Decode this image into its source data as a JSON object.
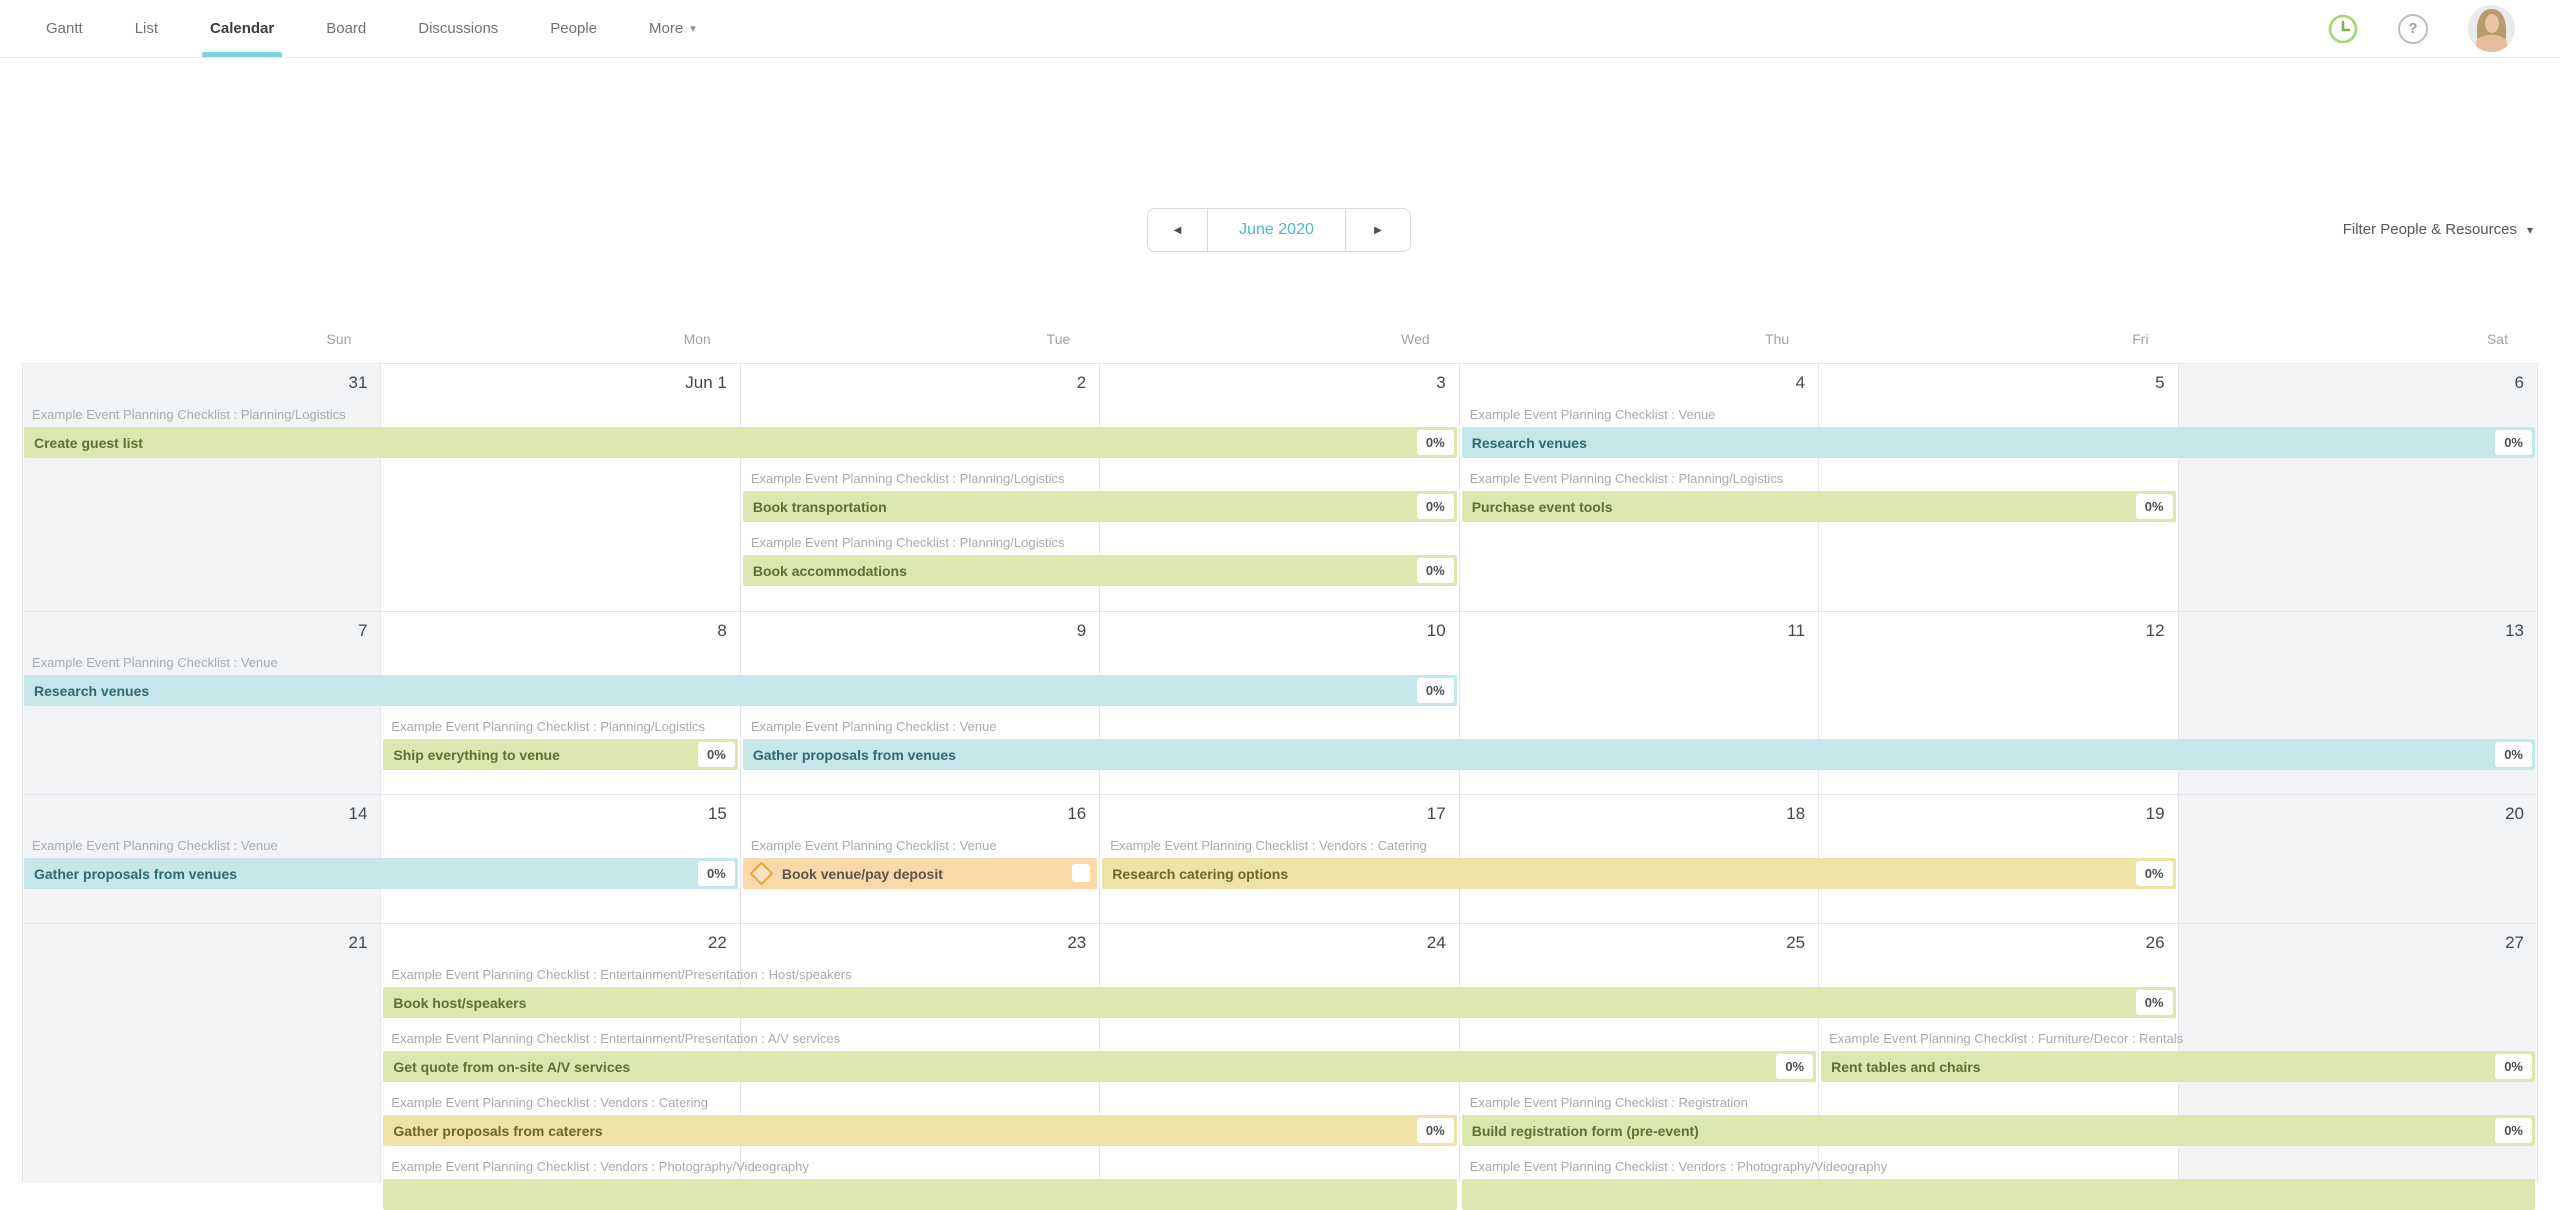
{
  "nav": {
    "tabs": [
      {
        "label": "Gantt"
      },
      {
        "label": "List"
      },
      {
        "label": "Calendar"
      },
      {
        "label": "Board"
      },
      {
        "label": "Discussions"
      },
      {
        "label": "People"
      },
      {
        "label": "More",
        "caret": "▾"
      }
    ],
    "active": "Calendar"
  },
  "icons": {
    "help_glyph": "?",
    "clock": "clock-icon",
    "avatar": "user-avatar"
  },
  "toolbar": {
    "prev_glyph": "◀",
    "month_label": "June 2020",
    "next_glyph": "▶",
    "filter_label": "Filter People & Resources",
    "filter_caret": "▾"
  },
  "colors": {
    "accent_underline": "#7ed1e2",
    "month_link": "#4bb8d6",
    "bar_green": "#dce7af",
    "bar_teal": "#c6e7ea",
    "bar_yellow": "#ece4a6",
    "bar_milestone_orange": "#f9d9a8",
    "milestone_diamond": "#e7a33f",
    "weekend_bg": "#f3f4f6",
    "grid_line": "#e3e5e8",
    "clock_green": "#a5d473"
  },
  "calendar": {
    "day_headers": [
      "Sun",
      "Mon",
      "Tue",
      "Wed",
      "Thu",
      "Fri",
      "Sat"
    ],
    "weeks": [
      {
        "dates": [
          "31",
          "Jun 1",
          "2",
          "3",
          "4",
          "5",
          "6"
        ],
        "lanes": [
          [
            {
              "category": "Example Event Planning Checklist : Planning/Logistics",
              "task": "Create guest list",
              "type": "green",
              "start": 0,
              "span": 4,
              "pct": "0%"
            },
            {
              "category": "Example Event Planning Checklist : Venue",
              "task": "Research venues",
              "type": "teal",
              "start": 4,
              "span": 3,
              "pct": "0%"
            }
          ],
          [
            {
              "category": "Example Event Planning Checklist : Planning/Logistics",
              "task": "Book transportation",
              "type": "green",
              "start": 2,
              "span": 2,
              "pct": "0%"
            },
            {
              "category": "Example Event Planning Checklist : Planning/Logistics",
              "task": "Purchase event tools",
              "type": "green",
              "start": 4,
              "span": 2,
              "pct": "0%"
            }
          ],
          [
            {
              "category": "Example Event Planning Checklist : Planning/Logistics",
              "task": "Book accommodations",
              "type": "green",
              "start": 2,
              "span": 2,
              "pct": "0%"
            }
          ]
        ]
      },
      {
        "dates": [
          "7",
          "8",
          "9",
          "10",
          "11",
          "12",
          "13"
        ],
        "lanes": [
          [
            {
              "category": "Example Event Planning Checklist : Venue",
              "task": "Research venues",
              "type": "teal",
              "start": 0,
              "span": 4,
              "pct": "0%"
            }
          ],
          [
            {
              "category": "Example Event Planning Checklist : Planning/Logistics",
              "task": "Ship everything to venue",
              "type": "green",
              "start": 1,
              "span": 1,
              "pct": "0%"
            },
            {
              "category": "Example Event Planning Checklist : Venue",
              "task": "Gather proposals from venues",
              "type": "teal",
              "start": 2,
              "span": 5,
              "pct": "0%"
            }
          ]
        ]
      },
      {
        "dates": [
          "14",
          "15",
          "16",
          "17",
          "18",
          "19",
          "20"
        ],
        "lanes": [
          [
            {
              "category": "Example Event Planning Checklist : Venue",
              "task": "Gather proposals from venues",
              "type": "teal",
              "start": 0,
              "span": 2,
              "pct": "0%"
            },
            {
              "category": "Example Event Planning Checklist : Venue",
              "task": "Book venue/pay deposit",
              "type": "milestone",
              "start": 2,
              "span": 1,
              "milestone": true,
              "checkbox": true
            },
            {
              "category": "Example Event Planning Checklist : Vendors : Catering",
              "task": "Research catering options",
              "type": "yellow",
              "start": 3,
              "span": 3,
              "pct": "0%"
            }
          ]
        ]
      },
      {
        "dates": [
          "21",
          "22",
          "23",
          "24",
          "25",
          "26",
          "27"
        ],
        "lanes": [
          [
            {
              "category": "Example Event Planning Checklist : Entertainment/Presentation : Host/speakers",
              "task": "Book host/speakers",
              "type": "green",
              "start": 1,
              "span": 5,
              "pct": "0%"
            }
          ],
          [
            {
              "category": "Example Event Planning Checklist : Entertainment/Presentation : A/V services",
              "task": "Get quote from on-site A/V services",
              "type": "green",
              "start": 1,
              "span": 4,
              "pct": "0%"
            },
            {
              "category": "Example Event Planning Checklist : Furniture/Decor : Rentals",
              "task": "Rent tables and chairs",
              "type": "green",
              "start": 5,
              "span": 2,
              "pct": "0%"
            }
          ],
          [
            {
              "category": "Example Event Planning Checklist : Vendors : Catering",
              "task": "Gather proposals from caterers",
              "type": "yellow",
              "start": 1,
              "span": 3,
              "pct": "0%"
            },
            {
              "category": "Example Event Planning Checklist : Registration",
              "task": "Build registration form (pre-event)",
              "type": "green",
              "start": 4,
              "span": 3,
              "pct": "0%"
            }
          ],
          [
            {
              "category": "Example Event Planning Checklist : Vendors : Photography/Videography",
              "task": "",
              "type": "green",
              "start": 1,
              "span": 3
            },
            {
              "category": "Example Event Planning Checklist : Vendors : Photography/Videography",
              "task": "",
              "type": "green",
              "start": 4,
              "span": 3
            }
          ]
        ]
      }
    ]
  }
}
